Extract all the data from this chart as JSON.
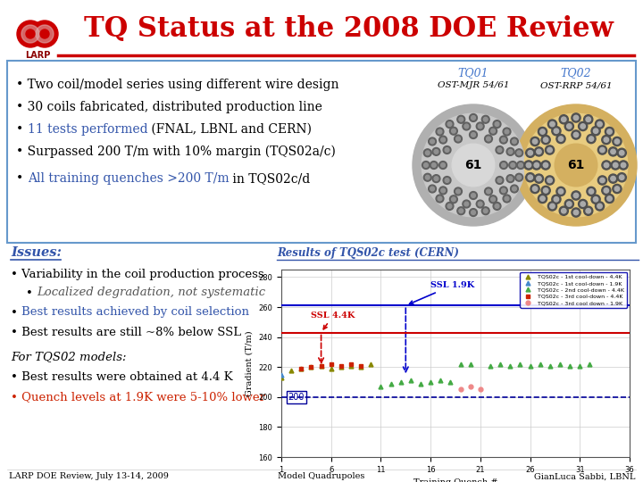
{
  "title": "TQ Status at the 2008 DOE Review",
  "title_color": "#cc0000",
  "title_fontsize": 22,
  "bg_color": "#ffffff",
  "header_line_color": "#cc0000",
  "border_color": "#6699cc",
  "larp_label_color": "#8b0000",
  "tq01_label": "TQ01",
  "tq01_sub": "OST-MJR 54/61",
  "tq02_label": "TQ02",
  "tq02_sub": "OST-RRP 54/61",
  "tq_label_color": "#4477cc",
  "results_label": "Results of TQS02c test (CERN)",
  "ssl_19k_label": "SSL 1.9K",
  "ssl_44k_label": "SSL 4.4K",
  "footer_left": "LARP DOE Review, July 13-14, 2009",
  "footer_center": "Model Quadrupoles",
  "footer_right": "GianLuca Sabbi, LBNL",
  "footer_color": "#000000",
  "footer_fontsize": 7,
  "blue_text": "#3355aa",
  "red_text": "#cc2200"
}
